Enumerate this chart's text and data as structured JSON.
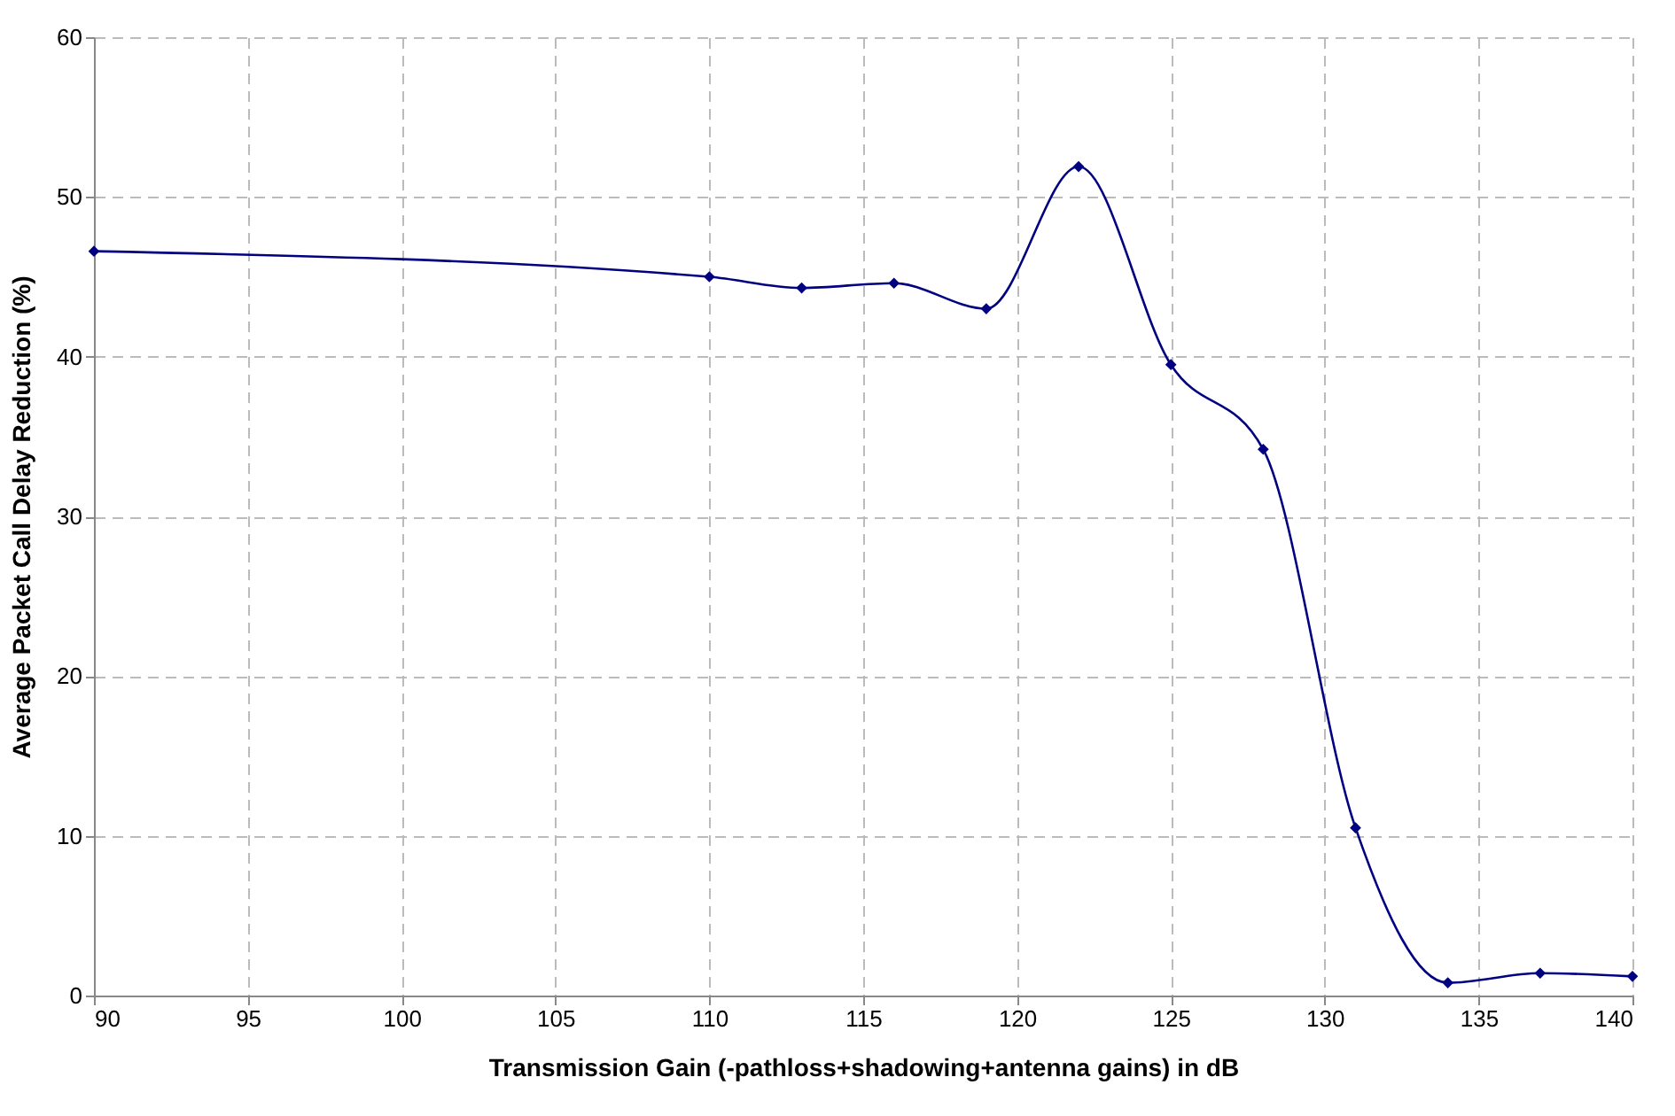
{
  "chart_data": {
    "type": "line",
    "xlabel": "Transmission Gain (-pathloss+shadowing+antenna gains) in dB",
    "ylabel": "Average Packet Call Delay Reduction (%)",
    "x": [
      90,
      110,
      113,
      116,
      119,
      122,
      125,
      128,
      131,
      134,
      137,
      140
    ],
    "series": [
      {
        "color": "#000080",
        "values": [
          46.6,
          45.0,
          44.3,
          44.6,
          43.0,
          51.9,
          39.5,
          34.2,
          10.5,
          0.8,
          1.4,
          1.2
        ]
      }
    ],
    "xlim": [
      90,
      140
    ],
    "xticks": [
      90,
      95,
      100,
      105,
      110,
      115,
      120,
      125,
      130,
      135,
      140
    ],
    "ylim": [
      0,
      60
    ],
    "yticks": [
      0,
      10,
      20,
      30,
      40,
      50,
      60
    ],
    "grid": true,
    "marker": "diamond",
    "line_style": "solid",
    "legend": false
  }
}
